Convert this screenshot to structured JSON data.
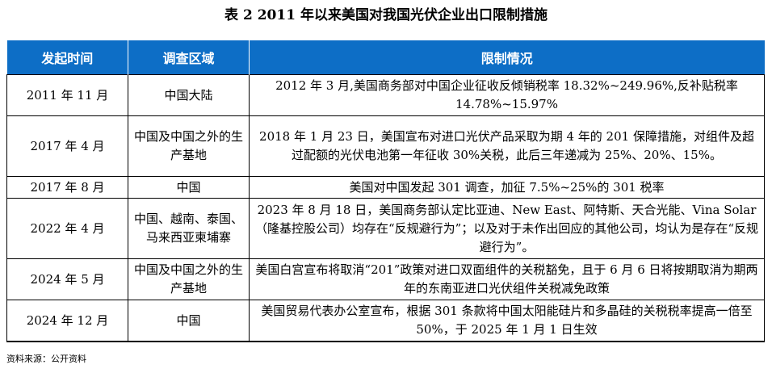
{
  "title": "表 2   2011 年以来美国对我国光伏企业出口限制措施",
  "headers": [
    "发起时间",
    "调查区域",
    "限制情况"
  ],
  "rows": [
    {
      "time": "2011 年 11 月",
      "region": "中国大陆",
      "detail": "2012 年 3 月,美国商务部对中国企业征收反倾销税率 18.32%~249.96%,反补贴税率 14.78%~15.97%"
    },
    {
      "time": "2017 年 4 月",
      "region": "中国及中国之外的生产基地",
      "detail": "2018 年 1 月 23 日，美国宣布对进口光伏产品采取为期 4 年的 201 保障措施，对组件及超过配额的光伏电池第一年征收 30%关税，此后三年递减为 25%、20%、15%。"
    },
    {
      "time": "2017 年 8 月",
      "region": "中国",
      "detail": "美国对中国发起 301 调查，加征 7.5%~25%的 301 税率"
    },
    {
      "time": "2022 年 4 月",
      "region": "中国、越南、泰国、马来西亚柬埔寨",
      "detail": "2023 年 8 月 18 日，美国商务部认定比亚迪、New East、阿特斯、天合光能、Vina Solar（隆基控股公司）均存在“反规避行为”；以及对于未作出回应的其他公司，均认为是存在“反规避行为”。"
    },
    {
      "time": "2024 年 5 月",
      "region": "中国及中国之外的生产基地",
      "detail": "美国白宫宣布将取消“201”政策对进口双面组件的关税豁免，且于 6 月 6 日将按期取消为期两年的东南亚进口光伏组件关税减免政策"
    },
    {
      "time": "2024 年 12 月",
      "region": "中国",
      "detail": "美国贸易代表办公室宣布，根据 301 条款将中国太阳能硅片和多晶硅的关税税率提高一倍至 50%，于 2025 年 1 月 1 日生效"
    }
  ],
  "source": "资料来源：公开资料"
}
